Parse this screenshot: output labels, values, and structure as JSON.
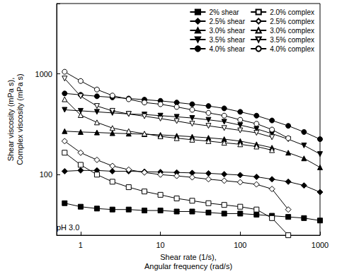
{
  "chart_data": {
    "type": "line",
    "x_label": "Shear rate (1/s),\nAngular frequency (rad/s)",
    "y_label": "Shear viscosity (mPa s),\nComplex viscosity (mPa s)",
    "annotation": "pH 3.0",
    "log": true,
    "xlim": [
      0.5,
      1000
    ],
    "xticks": [
      1,
      10,
      100,
      1000
    ],
    "ylim": [
      25,
      5000
    ],
    "yticks": [
      100,
      1000
    ],
    "grid": false,
    "legend": "upper right",
    "series": [
      {
        "name": "2% shear",
        "color": "#000000",
        "marker": "square",
        "line_style": "solid",
        "x": [
          0.63,
          1,
          1.6,
          2.5,
          4,
          6.3,
          10,
          16,
          25,
          40,
          63,
          100,
          160,
          250,
          400,
          630,
          1000
        ],
        "values": [
          52,
          48,
          46,
          45,
          45,
          44,
          44,
          43,
          43,
          42,
          41,
          41,
          40,
          39,
          38,
          37,
          35
        ]
      },
      {
        "name": "2.5% shear",
        "color": "#000000",
        "marker": "diamond",
        "line_style": "solid",
        "x": [
          0.63,
          1,
          1.6,
          2.5,
          4,
          6.3,
          10,
          16,
          25,
          40,
          63,
          100,
          160,
          250,
          400,
          630,
          1000
        ],
        "values": [
          108,
          110,
          110,
          108,
          108,
          107,
          106,
          105,
          104,
          103,
          101,
          99,
          95,
          90,
          85,
          78,
          67
        ]
      },
      {
        "name": "3.0% shear",
        "color": "#000000",
        "marker": "triangle",
        "line_style": "solid",
        "x": [
          0.63,
          1,
          1.6,
          2.5,
          4,
          6.3,
          10,
          16,
          25,
          40,
          63,
          100,
          160,
          250,
          400,
          630,
          1000
        ],
        "values": [
          270,
          265,
          262,
          258,
          255,
          252,
          248,
          243,
          238,
          232,
          225,
          215,
          200,
          185,
          165,
          145,
          118
        ]
      },
      {
        "name": "3.5% shear",
        "color": "#000000",
        "marker": "triangle-down",
        "line_style": "solid",
        "x": [
          0.63,
          1,
          1.6,
          2.5,
          4,
          6.3,
          10,
          16,
          25,
          40,
          63,
          100,
          160,
          250,
          400,
          630,
          1000
        ],
        "values": [
          440,
          430,
          420,
          410,
          400,
          395,
          385,
          375,
          365,
          350,
          335,
          310,
          285,
          255,
          225,
          195,
          160
        ]
      },
      {
        "name": "4.0% shear",
        "color": "#000000",
        "marker": "circle",
        "line_style": "solid",
        "x": [
          0.63,
          1,
          1.6,
          2.5,
          4,
          6.3,
          10,
          16,
          25,
          40,
          63,
          100,
          160,
          250,
          400,
          630,
          1000
        ],
        "values": [
          640,
          620,
          600,
          585,
          570,
          555,
          540,
          520,
          500,
          480,
          455,
          420,
          385,
          345,
          305,
          265,
          225
        ]
      },
      {
        "name": "2.0% complex",
        "color": "#000000",
        "marker": "square-open",
        "line_style": "solid",
        "x": [
          0.63,
          1,
          1.6,
          2.5,
          4,
          6.3,
          10,
          16,
          25,
          40,
          63,
          100,
          160,
          250,
          400
        ],
        "values": [
          165,
          125,
          100,
          85,
          75,
          68,
          63,
          58,
          55,
          52,
          50,
          48,
          45,
          37,
          25
        ]
      },
      {
        "name": "2.5% complex",
        "color": "#000000",
        "marker": "diamond-open",
        "line_style": "solid",
        "x": [
          0.63,
          1,
          1.6,
          2.5,
          4,
          6.3,
          10,
          16,
          25,
          40,
          63,
          100,
          160,
          250,
          400
        ],
        "values": [
          215,
          165,
          140,
          122,
          112,
          105,
          100,
          97,
          94,
          90,
          87,
          84,
          80,
          72,
          45
        ]
      },
      {
        "name": "3.0% complex",
        "color": "#000000",
        "marker": "triangle-open",
        "line_style": "solid",
        "x": [
          0.63,
          1,
          1.6,
          2.5,
          4,
          6.3,
          10,
          16,
          25,
          40,
          63,
          100,
          160,
          250
        ],
        "values": [
          560,
          390,
          330,
          290,
          270,
          255,
          240,
          230,
          222,
          215,
          207,
          200,
          190,
          175
        ]
      },
      {
        "name": "3.5% complex",
        "color": "#000000",
        "marker": "triangle-down-open",
        "line_style": "solid",
        "x": [
          0.63,
          1,
          1.6,
          2.5,
          4,
          6.3,
          10,
          16,
          25,
          40,
          63,
          100,
          160,
          250
        ],
        "values": [
          900,
          600,
          480,
          430,
          400,
          380,
          360,
          340,
          320,
          305,
          290,
          275,
          260,
          235
        ]
      },
      {
        "name": "4.0% complex",
        "color": "#000000",
        "marker": "circle-open",
        "line_style": "solid",
        "x": [
          0.63,
          1,
          1.6,
          2.5,
          4,
          6.3,
          10,
          16,
          25,
          40,
          63,
          100,
          160,
          250,
          400
        ],
        "values": [
          1050,
          850,
          700,
          610,
          560,
          520,
          500,
          470,
          440,
          410,
          385,
          350,
          320,
          280,
          230
        ]
      }
    ]
  }
}
